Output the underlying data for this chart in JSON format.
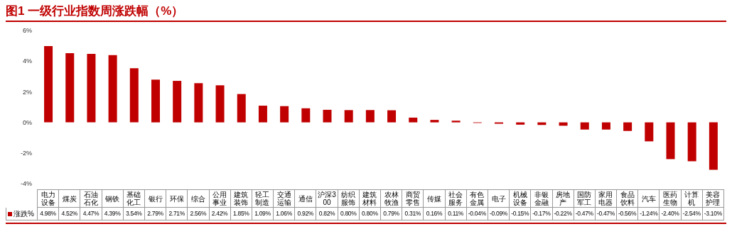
{
  "chart_data": {
    "type": "bar",
    "title": "图1 一级行业指数周涨跌幅（%）",
    "categories": [
      "电力设备",
      "煤炭",
      "石油石化",
      "钢铁",
      "基础化工",
      "银行",
      "环保",
      "综合",
      "公用事业",
      "建筑装饰",
      "轻工制造",
      "交通运输",
      "通信",
      "沪深300",
      "纺织服饰",
      "建筑材料",
      "农林牧渔",
      "商贸零售",
      "传媒",
      "社会服务",
      "有色金属",
      "电子",
      "机械设备",
      "非银金融",
      "房地产",
      "国防军工",
      "家用电器",
      "食品饮料",
      "汽车",
      "医药生物",
      "计算机",
      "美容护理"
    ],
    "series": [
      {
        "name": "涨跌%",
        "color": "#c00000",
        "values": [
          4.98,
          4.52,
          4.47,
          4.39,
          3.54,
          2.79,
          2.71,
          2.56,
          2.42,
          1.85,
          1.09,
          1.06,
          0.92,
          0.82,
          0.8,
          0.8,
          0.79,
          0.31,
          0.16,
          0.11,
          -0.04,
          -0.09,
          -0.15,
          -0.17,
          -0.22,
          -0.47,
          -0.47,
          -0.56,
          -1.24,
          -2.4,
          -2.54,
          -3.1
        ],
        "value_labels": [
          "4.98%",
          "4.52%",
          "4.47%",
          "4.39%",
          "3.54%",
          "2.79%",
          "2.71%",
          "2.56%",
          "2.42%",
          "1.85%",
          "1.09%",
          "1.06%",
          "0.92%",
          "0.82%",
          "0.80%",
          "0.80%",
          "0.79%",
          "0.31%",
          "0.16%",
          "0.11%",
          "-0.04%",
          "-0.09%",
          "-0.15%",
          "-0.17%",
          "-0.22%",
          "-0.47%",
          "-0.47%",
          "-0.56%",
          "-1.24%",
          "-2.40%",
          "-2.54%",
          "-3.10%"
        ]
      }
    ],
    "ylim": [
      -4,
      6
    ],
    "yticks": [
      {
        "value": -4,
        "label": "-4%"
      },
      {
        "value": -2,
        "label": "-2%"
      },
      {
        "value": 0,
        "label": "0%"
      },
      {
        "value": 2,
        "label": "2%"
      },
      {
        "value": 4,
        "label": "4%"
      },
      {
        "value": 6,
        "label": "6%"
      }
    ],
    "grid": false,
    "legend": "bottom left"
  }
}
